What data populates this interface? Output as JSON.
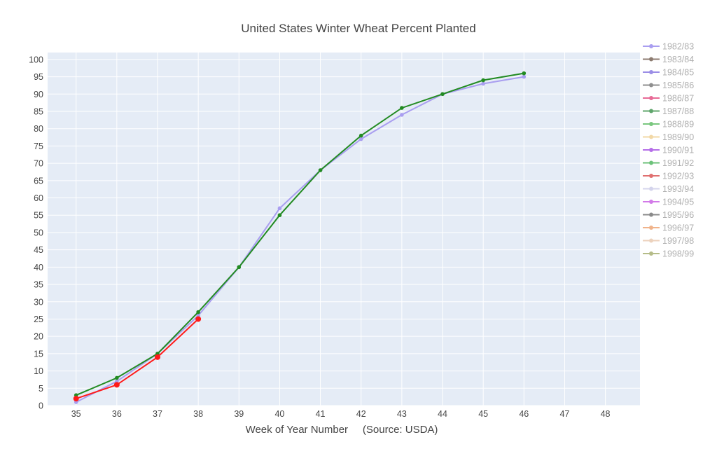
{
  "chart_data": {
    "type": "line",
    "title": "United States Winter Wheat Percent Planted",
    "xlabel": "Week of Year Number     (Source: USDA)",
    "ylabel": "",
    "xlim": [
      34.3,
      48.85
    ],
    "ylim": [
      0,
      102
    ],
    "x_ticks": [
      35,
      36,
      37,
      38,
      39,
      40,
      41,
      42,
      43,
      44,
      45,
      46,
      47,
      48
    ],
    "y_ticks": [
      0,
      5,
      10,
      15,
      20,
      25,
      30,
      35,
      40,
      45,
      50,
      55,
      60,
      65,
      70,
      75,
      80,
      85,
      90,
      95,
      100
    ],
    "grid": true,
    "legend_position": "right",
    "plot_background": "#e5ecf6",
    "series": [
      {
        "name": "1982/83",
        "color": "#a99ef0",
        "x": [
          35,
          36,
          37,
          38,
          39,
          40,
          41,
          42,
          43,
          44,
          45,
          46
        ],
        "y": [
          1,
          7,
          15,
          26,
          40,
          57,
          68,
          77,
          84,
          90,
          93,
          95
        ]
      },
      {
        "name": "1983/84",
        "color": "#8c7b70",
        "x": [],
        "y": []
      },
      {
        "name": "1984/85",
        "color": "#9b8ee6",
        "x": [],
        "y": []
      },
      {
        "name": "1985/86",
        "color": "#8f8f8f",
        "x": [],
        "y": []
      },
      {
        "name": "1986/87",
        "color": "#e86b96",
        "x": [],
        "y": []
      },
      {
        "name": "1987/88",
        "color": "#5fa56b",
        "x": [],
        "y": []
      },
      {
        "name": "1988/89",
        "color": "#7ac77f",
        "x": [],
        "y": []
      },
      {
        "name": "1989/90",
        "color": "#f2d8a6",
        "x": [],
        "y": []
      },
      {
        "name": "1990/91",
        "color": "#b56ee8",
        "x": [],
        "y": []
      },
      {
        "name": "1991/92",
        "color": "#6cc27a",
        "x": [],
        "y": []
      },
      {
        "name": "1992/93",
        "color": "#e07070",
        "x": [],
        "y": []
      },
      {
        "name": "1993/94",
        "color": "#d4d4ec",
        "x": [],
        "y": []
      },
      {
        "name": "1994/95",
        "color": "#d27ae8",
        "x": [],
        "y": []
      },
      {
        "name": "1995/96",
        "color": "#8a8a8a",
        "x": [],
        "y": []
      },
      {
        "name": "1996/97",
        "color": "#f0b38a",
        "x": [],
        "y": []
      },
      {
        "name": "1997/98",
        "color": "#ecd2bd",
        "x": [],
        "y": []
      },
      {
        "name": "1998/99",
        "color": "#b5bc88",
        "x": [],
        "y": []
      },
      {
        "name": "",
        "color": "#228b22",
        "x": [
          35,
          36,
          37,
          38,
          39,
          40,
          41,
          42,
          43,
          44,
          45,
          46
        ],
        "y": [
          3,
          8,
          15,
          27,
          40,
          55,
          68,
          78,
          86,
          90,
          94,
          96
        ]
      },
      {
        "name": "",
        "color": "#ff1a1a",
        "x": [
          35,
          36,
          37,
          38
        ],
        "y": [
          2,
          6,
          14,
          25
        ]
      }
    ]
  }
}
